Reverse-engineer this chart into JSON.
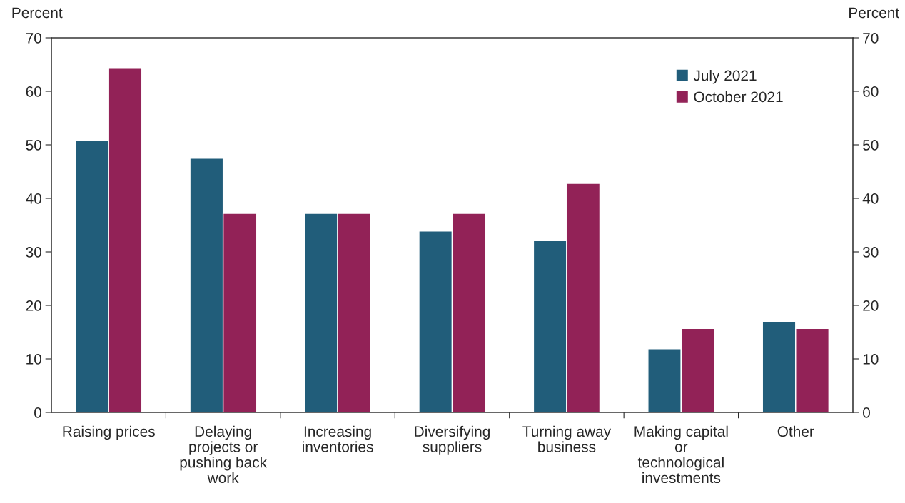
{
  "chart_data": {
    "type": "bar",
    "ylabel": "Percent",
    "y2label": "Percent",
    "categories": [
      "Raising prices",
      "Delaying\nprojects or\npushing back\nwork",
      "Increasing\ninventories",
      "Diversifying\nsuppliers",
      "Turning away\nbusiness",
      "Making capital\nor\ntechnological\ninvestments",
      "Other"
    ],
    "series": [
      {
        "name": "July 2021",
        "color": "#215d7a",
        "values": [
          50.8,
          47.5,
          37.2,
          33.9,
          32.1,
          11.9,
          16.9
        ]
      },
      {
        "name": "October 2021",
        "color": "#922257",
        "values": [
          64.3,
          37.2,
          37.2,
          37.2,
          42.8,
          15.7,
          15.7
        ]
      }
    ],
    "ylim": [
      0,
      70
    ],
    "yticks": [
      0,
      10,
      20,
      30,
      40,
      50,
      60,
      70
    ],
    "y2lim": [
      0,
      70
    ],
    "y2ticks": [
      0,
      10,
      20,
      30,
      40,
      50,
      60,
      70
    ],
    "grid": false,
    "legend": "top right"
  }
}
